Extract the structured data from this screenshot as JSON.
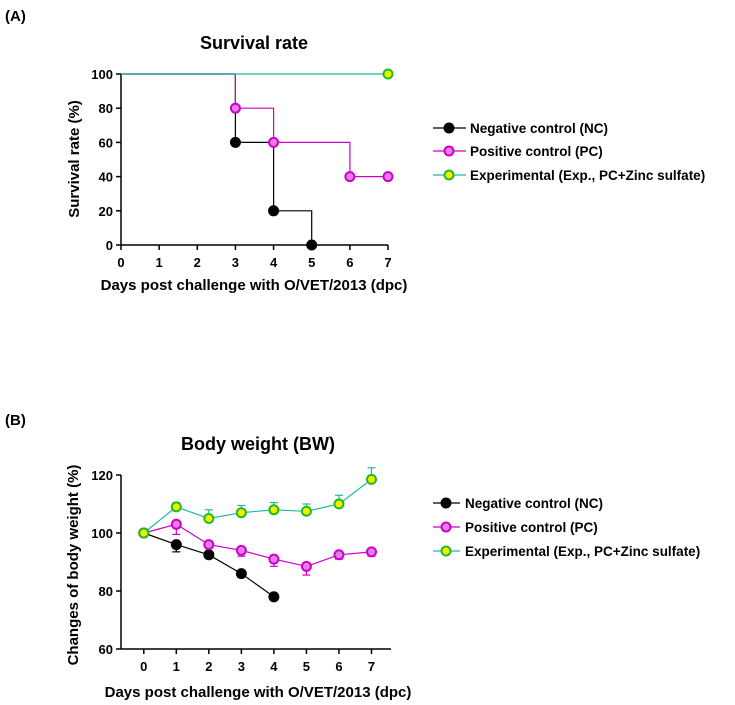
{
  "chart_data": [
    {
      "panel": "(A)",
      "type": "line",
      "subtype": "kaplan-meier-step",
      "title": "Survival rate",
      "xlabel": "Days post challenge with O/VET/2013 (dpc)",
      "ylabel": "Survival rate (%)",
      "xlim": [
        0,
        7
      ],
      "ylim": [
        0,
        100
      ],
      "xticks": [
        "0",
        "1",
        "2",
        "3",
        "4",
        "5",
        "6",
        "7"
      ],
      "yticks": [
        "0",
        "20",
        "40",
        "60",
        "80",
        "100"
      ],
      "legend_position": "right",
      "series": [
        {
          "name": "Negative control (NC)",
          "color": "#000000",
          "marker_fill": "#000000",
          "marker_edge": "#000000",
          "steps": [
            [
              0,
              100
            ],
            [
              3,
              100
            ],
            [
              3,
              60
            ],
            [
              4,
              60
            ],
            [
              4,
              20
            ],
            [
              5,
              20
            ],
            [
              5,
              0
            ]
          ],
          "markers": [
            [
              3,
              60
            ],
            [
              4,
              20
            ],
            [
              5,
              0
            ]
          ]
        },
        {
          "name": "Positive control (PC)",
          "color": "#cc00cc",
          "marker_fill": "#e87de8",
          "marker_edge": "#cc00cc",
          "steps": [
            [
              0,
              100
            ],
            [
              3,
              100
            ],
            [
              3,
              80
            ],
            [
              4,
              80
            ],
            [
              4,
              60
            ],
            [
              6,
              60
            ],
            [
              6,
              40
            ],
            [
              7,
              40
            ]
          ],
          "markers": [
            [
              3,
              80
            ],
            [
              4,
              60
            ],
            [
              6,
              40
            ],
            [
              7,
              40
            ]
          ]
        },
        {
          "name": "Experimental (Exp., PC+Zinc sulfate)",
          "color": "#1fb8a4",
          "marker_fill": "#f0f000",
          "marker_edge": "#22bb22",
          "steps": [
            [
              0,
              100
            ],
            [
              7,
              100
            ]
          ],
          "markers": [
            [
              7,
              100
            ]
          ]
        }
      ]
    },
    {
      "panel": "(B)",
      "type": "line",
      "title": "Body weight (BW)",
      "xlabel": "Days post challenge with O/VET/2013 (dpc)",
      "ylabel": "Changes of body weight (%)",
      "xlim": [
        -0.7,
        7.6
      ],
      "ylim": [
        60,
        120
      ],
      "xticks": [
        "0",
        "1",
        "2",
        "3",
        "4",
        "5",
        "6",
        "7"
      ],
      "yticks": [
        "60",
        "80",
        "100",
        "120"
      ],
      "legend_position": "right",
      "series": [
        {
          "name": "Negative control (NC)",
          "color": "#000000",
          "marker_fill": "#000000",
          "marker_edge": "#000000",
          "x": [
            0,
            1,
            2,
            3,
            4
          ],
          "y": [
            100,
            96,
            92.5,
            86,
            78
          ],
          "err": [
            0,
            2.5,
            1.2,
            1.2,
            1
          ]
        },
        {
          "name": "Positive control (PC)",
          "color": "#cc00cc",
          "marker_fill": "#e87de8",
          "marker_edge": "#cc00cc",
          "x": [
            0,
            1,
            2,
            3,
            4,
            5,
            6,
            7
          ],
          "y": [
            100,
            103,
            96,
            94,
            91,
            88.5,
            92.5,
            93.5
          ],
          "err": [
            0,
            3.5,
            3,
            2,
            2.5,
            3,
            1.5,
            1.5
          ]
        },
        {
          "name": "Experimental (Exp., PC+Zinc sulfate)",
          "color": "#1fb8a4",
          "marker_fill": "#f0f000",
          "marker_edge": "#22bb22",
          "x": [
            0,
            1,
            2,
            3,
            4,
            5,
            6,
            7
          ],
          "y": [
            100,
            109,
            105,
            107,
            108,
            107.5,
            110,
            118.5
          ],
          "err": [
            0,
            1.5,
            3,
            2.5,
            2.5,
            2.5,
            3,
            4
          ]
        }
      ]
    }
  ]
}
